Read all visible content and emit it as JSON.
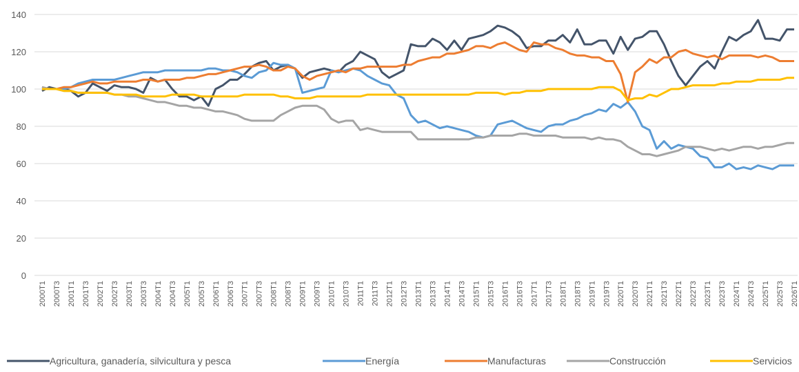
{
  "chart_data": {
    "type": "line",
    "categories": [
      "2000T1",
      null,
      "2000T3",
      null,
      "2001T1",
      null,
      "2001T3",
      null,
      "2002T1",
      null,
      "2002T3",
      null,
      "2003T1",
      null,
      "2003T3",
      null,
      "2004T1",
      null,
      "2004T3",
      null,
      "2005T1",
      null,
      "2005T3",
      null,
      "2006T1",
      null,
      "2006T3",
      null,
      "2007T1",
      null,
      "2007T3",
      null,
      "2008T1",
      null,
      "2008T3",
      null,
      "2009T1",
      null,
      "2009T3",
      null,
      "2010T1",
      null,
      "2010T3",
      null,
      "2011T1",
      null,
      "2011T3",
      null,
      "2012T1",
      null,
      "2012T3",
      null,
      "2013T1",
      null,
      "2013T3",
      null,
      "2014T1",
      null,
      "2014T3",
      null,
      "2015T1",
      null,
      "2015T3",
      null,
      "2016T1",
      null,
      "2016T3",
      null,
      "2017T1",
      null,
      "2017T3",
      null,
      "2018T1",
      null,
      "2018T3",
      null,
      "2019T1",
      null,
      "2019T3",
      null,
      "2020T1",
      null,
      "2020T3",
      null,
      "2021T1",
      null,
      "2021T3",
      null,
      "2022T1",
      null,
      "2022T3",
      null,
      "2023T1",
      null,
      "2023T3",
      null,
      "2024T1",
      null,
      "2024T3",
      null,
      "2025T1",
      null,
      "2025T3",
      null,
      "2026T1"
    ],
    "series": [
      {
        "name": "Agricultura, ganadería, silvicultura y pesca",
        "color": "#44546a",
        "values": [
          99,
          101,
          100,
          100,
          99,
          96,
          98,
          103,
          101,
          99,
          102,
          101,
          101,
          100,
          98,
          106,
          104,
          105,
          100,
          96,
          96,
          94,
          96,
          91,
          100,
          102,
          105,
          105,
          108,
          112,
          114,
          115,
          110,
          112,
          113,
          111,
          106,
          109,
          110,
          111,
          110,
          109,
          113,
          115,
          120,
          118,
          116,
          109,
          106,
          108,
          110,
          124,
          123,
          123,
          127,
          125,
          121,
          126,
          121,
          127,
          128,
          129,
          131,
          134,
          133,
          131,
          128,
          122,
          123,
          123,
          126,
          126,
          129,
          125,
          132,
          124,
          124,
          126,
          126,
          119,
          128,
          121,
          127,
          128,
          131,
          131,
          124,
          115,
          107,
          102,
          107,
          112,
          115,
          111,
          120,
          128,
          126,
          129,
          131,
          137,
          127,
          127,
          126,
          132,
          132
        ]
      },
      {
        "name": "Energía",
        "color": "#5b9bd5",
        "values": [
          101,
          100,
          100,
          100,
          101,
          103,
          104,
          105,
          105,
          105,
          105,
          106,
          107,
          108,
          109,
          109,
          109,
          110,
          110,
          110,
          110,
          110,
          110,
          111,
          111,
          110,
          110,
          109,
          107,
          106,
          109,
          110,
          114,
          113,
          113,
          111,
          98,
          99,
          100,
          101,
          110,
          109,
          110,
          111,
          110,
          107,
          105,
          103,
          102,
          97,
          95,
          86,
          82,
          83,
          81,
          79,
          80,
          79,
          78,
          77,
          75,
          74,
          75,
          81,
          82,
          83,
          81,
          79,
          78,
          77,
          80,
          81,
          81,
          83,
          84,
          86,
          87,
          89,
          88,
          92,
          90,
          93,
          88,
          80,
          78,
          68,
          72,
          68,
          70,
          69,
          68,
          64,
          63,
          58,
          58,
          60,
          57,
          58,
          57,
          59,
          58,
          57,
          59,
          59,
          59
        ]
      },
      {
        "name": "Manufacturas",
        "color": "#ed7d31",
        "values": [
          101,
          100,
          100,
          101,
          101,
          102,
          103,
          104,
          103,
          103,
          104,
          104,
          104,
          104,
          105,
          105,
          104,
          105,
          105,
          105,
          106,
          106,
          107,
          108,
          108,
          109,
          110,
          111,
          112,
          112,
          113,
          112,
          110,
          110,
          112,
          111,
          107,
          105,
          107,
          108,
          109,
          110,
          109,
          111,
          111,
          112,
          112,
          112,
          112,
          112,
          113,
          113,
          115,
          116,
          117,
          117,
          119,
          119,
          120,
          121,
          123,
          123,
          122,
          124,
          125,
          123,
          121,
          120,
          125,
          124,
          124,
          122,
          121,
          119,
          118,
          118,
          117,
          117,
          115,
          115,
          108,
          93,
          109,
          112,
          116,
          114,
          117,
          117,
          120,
          121,
          119,
          118,
          117,
          118,
          116,
          118,
          118,
          118,
          118,
          117,
          118,
          117,
          115,
          115,
          115
        ]
      },
      {
        "name": "Construcción",
        "color": "#a5a5a5",
        "values": [
          101,
          100,
          100,
          99,
          99,
          98,
          98,
          98,
          98,
          98,
          97,
          97,
          96,
          96,
          95,
          94,
          93,
          93,
          92,
          91,
          91,
          90,
          90,
          89,
          88,
          88,
          87,
          86,
          84,
          83,
          83,
          83,
          83,
          86,
          88,
          90,
          91,
          91,
          91,
          89,
          84,
          82,
          83,
          83,
          78,
          79,
          78,
          77,
          77,
          77,
          77,
          77,
          73,
          73,
          73,
          73,
          73,
          73,
          73,
          73,
          74,
          74,
          75,
          75,
          75,
          75,
          76,
          76,
          75,
          75,
          75,
          75,
          74,
          74,
          74,
          74,
          73,
          74,
          73,
          73,
          72,
          69,
          67,
          65,
          65,
          64,
          65,
          66,
          67,
          69,
          69,
          69,
          68,
          67,
          68,
          67,
          68,
          69,
          69,
          68,
          69,
          69,
          70,
          71,
          71
        ]
      },
      {
        "name": "Servicios",
        "color": "#ffc000",
        "values": [
          100,
          100,
          100,
          99,
          99,
          98,
          98,
          98,
          98,
          98,
          97,
          97,
          97,
          97,
          96,
          96,
          96,
          96,
          97,
          97,
          97,
          97,
          96,
          96,
          96,
          96,
          96,
          96,
          97,
          97,
          97,
          97,
          97,
          96,
          96,
          95,
          95,
          95,
          96,
          96,
          96,
          96,
          96,
          96,
          96,
          97,
          97,
          97,
          97,
          97,
          97,
          97,
          97,
          97,
          97,
          97,
          97,
          97,
          97,
          97,
          98,
          98,
          98,
          98,
          97,
          98,
          98,
          99,
          99,
          99,
          100,
          100,
          100,
          100,
          100,
          100,
          100,
          101,
          101,
          101,
          99,
          94,
          95,
          95,
          97,
          96,
          98,
          100,
          100,
          101,
          102,
          102,
          102,
          102,
          103,
          103,
          104,
          104,
          104,
          105,
          105,
          105,
          105,
          106,
          106
        ]
      }
    ],
    "ylim": [
      0,
      140
    ],
    "yticks": [
      0,
      20,
      40,
      60,
      80,
      100,
      120,
      140
    ],
    "grid": true,
    "legend": "bottom"
  }
}
